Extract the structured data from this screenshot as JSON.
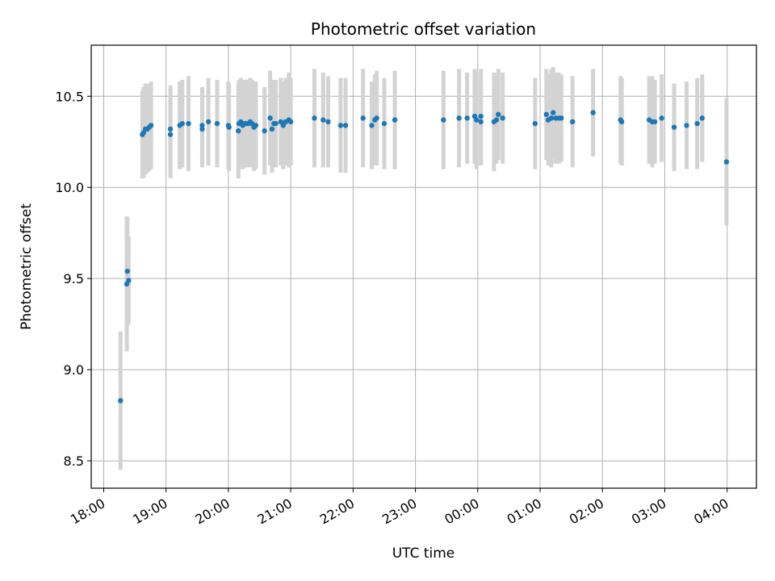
{
  "chart_data": {
    "type": "scatter",
    "title": "Photometric offset variation",
    "xlabel": "UTC time",
    "ylabel": "Photometric offset",
    "x_ticks": [
      {
        "label": "18:00",
        "hour": 0
      },
      {
        "label": "19:00",
        "hour": 1
      },
      {
        "label": "20:00",
        "hour": 2
      },
      {
        "label": "21:00",
        "hour": 3
      },
      {
        "label": "22:00",
        "hour": 4
      },
      {
        "label": "23:00",
        "hour": 5
      },
      {
        "label": "00:00",
        "hour": 6
      },
      {
        "label": "01:00",
        "hour": 7
      },
      {
        "label": "02:00",
        "hour": 8
      },
      {
        "label": "03:00",
        "hour": 9
      },
      {
        "label": "04:00",
        "hour": 10
      }
    ],
    "xlim": [
      -0.2,
      10.47
    ],
    "y_ticks": [
      "8.5",
      "9.0",
      "9.5",
      "10.0",
      "10.5"
    ],
    "ylim": [
      8.35,
      10.78
    ],
    "grid": true,
    "colors": {
      "point": "#1f77b4",
      "errorbar": "#d3d3d3",
      "grid": "#b0b0b0"
    },
    "points": [
      [
        0.27,
        8.83,
        0.38
      ],
      [
        0.37,
        9.47,
        0.37
      ],
      [
        0.38,
        9.54,
        0.3
      ],
      [
        0.4,
        9.49,
        0.24
      ],
      [
        0.62,
        10.29,
        0.24
      ],
      [
        0.64,
        10.3,
        0.25
      ],
      [
        0.67,
        10.32,
        0.25
      ],
      [
        0.7,
        10.32,
        0.24
      ],
      [
        0.73,
        10.33,
        0.24
      ],
      [
        0.76,
        10.34,
        0.24
      ],
      [
        1.07,
        10.29,
        0.24
      ],
      [
        1.07,
        10.32,
        0.24
      ],
      [
        1.22,
        10.34,
        0.24
      ],
      [
        1.26,
        10.35,
        0.24
      ],
      [
        1.36,
        10.35,
        0.26
      ],
      [
        1.58,
        10.32,
        0.21
      ],
      [
        1.58,
        10.34,
        0.21
      ],
      [
        1.68,
        10.36,
        0.24
      ],
      [
        1.82,
        10.35,
        0.24
      ],
      [
        2.0,
        10.34,
        0.24
      ],
      [
        2.01,
        10.33,
        0.24
      ],
      [
        2.16,
        10.31,
        0.26
      ],
      [
        2.17,
        10.35,
        0.24
      ],
      [
        2.2,
        10.36,
        0.24
      ],
      [
        2.23,
        10.34,
        0.24
      ],
      [
        2.26,
        10.35,
        0.24
      ],
      [
        2.29,
        10.35,
        0.24
      ],
      [
        2.32,
        10.35,
        0.24
      ],
      [
        2.35,
        10.36,
        0.24
      ],
      [
        2.38,
        10.35,
        0.24
      ],
      [
        2.41,
        10.33,
        0.24
      ],
      [
        2.44,
        10.34,
        0.24
      ],
      [
        2.58,
        10.31,
        0.24
      ],
      [
        2.67,
        10.38,
        0.26
      ],
      [
        2.7,
        10.32,
        0.24
      ],
      [
        2.73,
        10.35,
        0.24
      ],
      [
        2.76,
        10.35,
        0.24
      ],
      [
        2.84,
        10.36,
        0.24
      ],
      [
        2.88,
        10.34,
        0.24
      ],
      [
        2.92,
        10.36,
        0.24
      ],
      [
        2.97,
        10.37,
        0.26
      ],
      [
        3.0,
        10.36,
        0.24
      ],
      [
        3.38,
        10.38,
        0.27
      ],
      [
        3.52,
        10.37,
        0.26
      ],
      [
        3.6,
        10.36,
        0.25
      ],
      [
        3.8,
        10.34,
        0.26
      ],
      [
        3.88,
        10.34,
        0.26
      ],
      [
        4.16,
        10.38,
        0.27
      ],
      [
        4.3,
        10.34,
        0.24
      ],
      [
        4.35,
        10.37,
        0.25
      ],
      [
        4.38,
        10.38,
        0.26
      ],
      [
        4.5,
        10.35,
        0.25
      ],
      [
        4.67,
        10.37,
        0.27
      ],
      [
        5.45,
        10.37,
        0.27
      ],
      [
        5.7,
        10.38,
        0.27
      ],
      [
        5.83,
        10.38,
        0.25
      ],
      [
        5.95,
        10.39,
        0.26
      ],
      [
        5.98,
        10.37,
        0.27
      ],
      [
        6.05,
        10.39,
        0.26
      ],
      [
        6.05,
        10.36,
        0.24
      ],
      [
        6.26,
        10.36,
        0.27
      ],
      [
        6.3,
        10.37,
        0.24
      ],
      [
        6.33,
        10.4,
        0.25
      ],
      [
        6.4,
        10.38,
        0.25
      ],
      [
        6.92,
        10.35,
        0.25
      ],
      [
        7.1,
        10.4,
        0.25
      ],
      [
        7.13,
        10.37,
        0.25
      ],
      [
        7.18,
        10.38,
        0.27
      ],
      [
        7.21,
        10.41,
        0.25
      ],
      [
        7.25,
        10.38,
        0.25
      ],
      [
        7.3,
        10.38,
        0.25
      ],
      [
        7.34,
        10.38,
        0.24
      ],
      [
        7.52,
        10.36,
        0.25
      ],
      [
        7.85,
        10.41,
        0.24
      ],
      [
        8.29,
        10.37,
        0.24
      ],
      [
        8.31,
        10.36,
        0.24
      ],
      [
        8.75,
        10.37,
        0.24
      ],
      [
        8.8,
        10.36,
        0.25
      ],
      [
        8.84,
        10.36,
        0.23
      ],
      [
        8.95,
        10.38,
        0.24
      ],
      [
        9.15,
        10.33,
        0.24
      ],
      [
        9.35,
        10.34,
        0.24
      ],
      [
        9.52,
        10.35,
        0.25
      ],
      [
        9.6,
        10.38,
        0.24
      ],
      [
        9.99,
        10.14,
        0.35
      ]
    ]
  }
}
